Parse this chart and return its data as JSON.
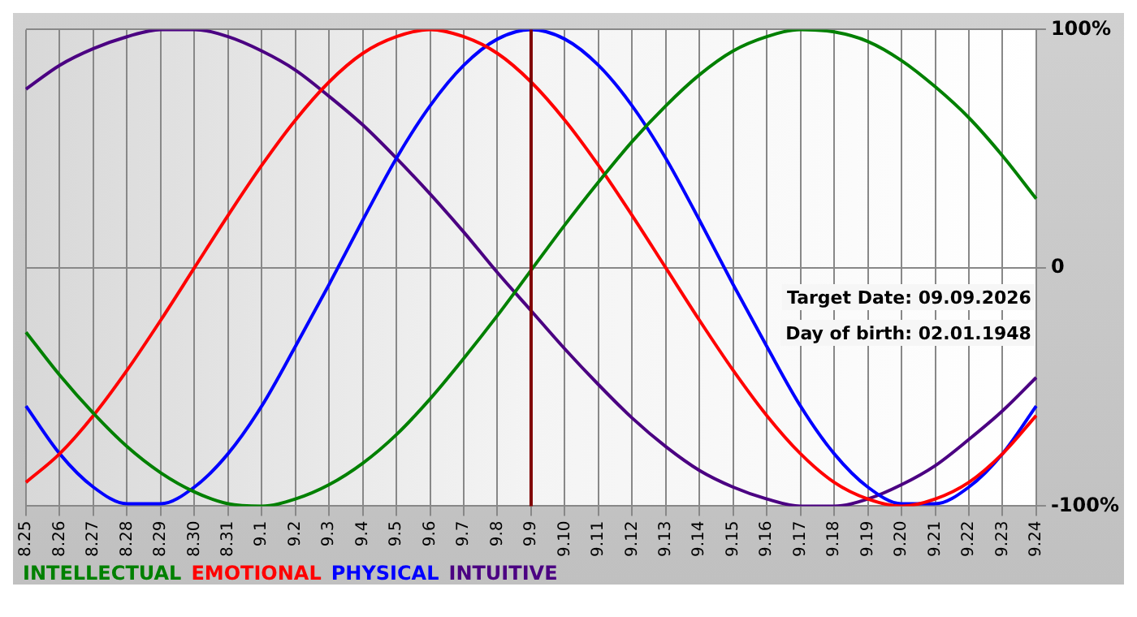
{
  "chart_data": {
    "type": "line",
    "categories": [
      "8.25",
      "8.26",
      "8.27",
      "8.28",
      "8.29",
      "8.30",
      "8.31",
      "9.1",
      "9.2",
      "9.3",
      "9.4",
      "9.5",
      "9.6",
      "9.7",
      "9.8",
      "9.9",
      "9.10",
      "9.11",
      "9.12",
      "9.13",
      "9.14",
      "9.15",
      "9.16",
      "9.17",
      "9.18",
      "9.19",
      "9.20",
      "9.21",
      "9.22",
      "9.23",
      "9.24"
    ],
    "series": [
      {
        "name": "INTELLECTUAL",
        "color": "#008000",
        "values": [
          -27,
          -45,
          -61,
          -75,
          -86,
          -94,
          -99,
          -100,
          -97,
          -91,
          -82,
          -70,
          -55,
          -38,
          -20,
          -1,
          18,
          36,
          53,
          68,
          81,
          91,
          97,
          100,
          99,
          95,
          87,
          76,
          63,
          47,
          29
        ]
      },
      {
        "name": "EMOTIONAL",
        "color": "#ff0000",
        "values": [
          -90,
          -78,
          -62,
          -43,
          -22,
          0,
          22,
          43,
          62,
          78,
          90,
          97,
          100,
          97,
          90,
          78,
          62,
          43,
          22,
          0,
          -22,
          -43,
          -62,
          -78,
          -90,
          -97,
          -100,
          -97,
          -90,
          -78,
          -62
        ]
      },
      {
        "name": "PHYSICAL",
        "color": "#0000ff",
        "values": [
          -58,
          -78,
          -92,
          -99,
          -99,
          -92,
          -78,
          -58,
          -33,
          -7,
          20,
          46,
          68,
          85,
          96,
          100,
          96,
          85,
          68,
          46,
          20,
          -7,
          -33,
          -58,
          -78,
          -92,
          -99,
          -99,
          -92,
          -78,
          -58
        ]
      },
      {
        "name": "INTUITIVE",
        "color": "#4b0082",
        "values": [
          75,
          85,
          92,
          97,
          100,
          100,
          97,
          91,
          83,
          72,
          60,
          46,
          31,
          15,
          -2,
          -18,
          -34,
          -49,
          -63,
          -75,
          -85,
          -92,
          -97,
          -100,
          -100,
          -97,
          -91,
          -83,
          -72,
          -60,
          -46
        ]
      }
    ],
    "ylim": [
      -100,
      100
    ],
    "yticks": [
      {
        "value": 100,
        "label": "100%"
      },
      0,
      {
        "value": -100,
        "label": "-100%"
      }
    ],
    "ref_lines": [
      {
        "axis": "x",
        "value": "9.9",
        "color": "#800000"
      }
    ],
    "annotations": [
      "Target Date: 09.09.2026",
      "Day of birth: 02.01.1948"
    ],
    "grid": true,
    "legend": "bottom",
    "marker": "none",
    "line_style": "solid"
  }
}
